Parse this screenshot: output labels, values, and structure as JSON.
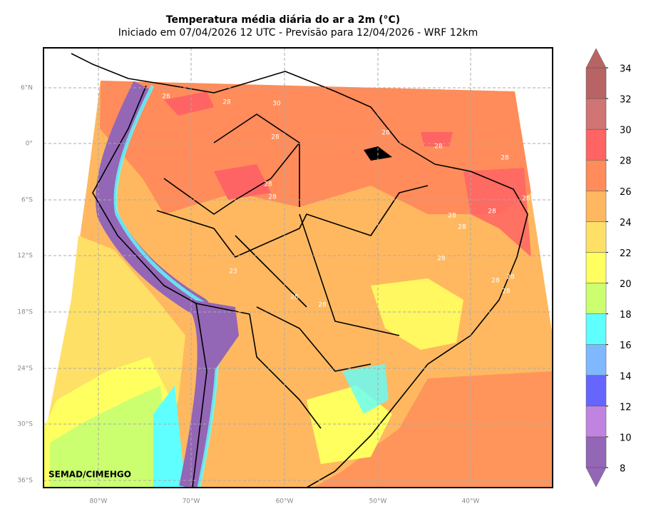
{
  "title": "Temperatura média diária do ar a 2m (°C)",
  "subtitle": "Iniciado em 07/04/2026 12 UTC - Previsão para 12/04/2026 - WRF 12km",
  "lat_labels": [
    "6°N",
    "0°",
    "6°S",
    "12°S",
    "18°S",
    "24°S",
    "30°S",
    "36°S"
  ],
  "lon_labels": [
    "80°W",
    "70°W",
    "60°W",
    "50°W",
    "40°W"
  ],
  "colorbar": {
    "levels": [
      8,
      10,
      12,
      14,
      16,
      18,
      20,
      22,
      24,
      26,
      28,
      30,
      32,
      34
    ],
    "colors": [
      "#9466b6",
      "#c084e0",
      "#6666ff",
      "#80b8ff",
      "#60ffff",
      "#ccff70",
      "#ffff60",
      "#ffe066",
      "#ffb860",
      "#ff8c5a",
      "#ff6464",
      "#d07474",
      "#b86464"
    ],
    "under_color": "#9466b6",
    "over_color": "#b86464"
  },
  "contour_labels": [
    "28",
    "28",
    "30",
    "28",
    "28",
    "28",
    "28",
    "28",
    "28",
    "28",
    "28",
    "28",
    "28",
    "28",
    "23",
    "28",
    "28",
    "28",
    "28",
    "28"
  ],
  "credit": "SEMAD/CIMEHGO"
}
